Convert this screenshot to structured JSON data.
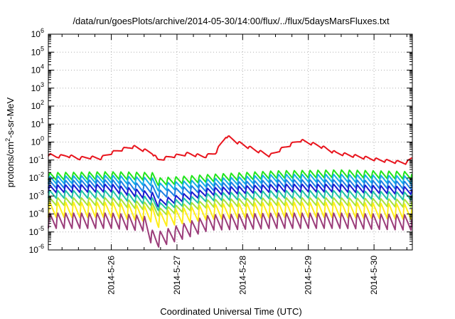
{
  "chart_data": {
    "type": "line",
    "title": "/data/run/goesPlots/archive/2014-05-30/14:00/flux/../flux/5daysMarsFluxes.txt",
    "xlabel": "Coordinated Universal Time (UTC)",
    "ylabel": {
      "prefix": "protons/cm",
      "superscript": "2",
      "suffix": "-s-sr-MeV"
    },
    "y_scale": "log",
    "ylim_exp": [
      -6,
      6
    ],
    "y_ticks": [
      {
        "base": "10",
        "exp": "6"
      },
      {
        "base": "10",
        "exp": "5"
      },
      {
        "base": "10",
        "exp": "4"
      },
      {
        "base": "10",
        "exp": "3"
      },
      {
        "base": "10",
        "exp": "2"
      },
      {
        "base": "10",
        "exp": "1"
      },
      {
        "base": "10",
        "exp": "0"
      },
      {
        "base": "10",
        "exp": "-1"
      },
      {
        "base": "10",
        "exp": "-2"
      },
      {
        "base": "10",
        "exp": "-3"
      },
      {
        "base": "10",
        "exp": "-4"
      },
      {
        "base": "10",
        "exp": "-5"
      },
      {
        "base": "10",
        "exp": "-6"
      }
    ],
    "x_range_days": [
      "2014-05-25 01:00",
      "2014-05-30 14:00"
    ],
    "x_ticks": [
      "2014-5-26",
      "2014-5-27",
      "2014-5-28",
      "2014-5-29",
      "2014-5-30"
    ],
    "grid": true,
    "legend": "none",
    "sawtooth_period_days": 0.12,
    "series": [
      {
        "color": "#e8141d",
        "sawtooth": false,
        "points": [
          [
            "2014-05-25 01:00",
            -0.7
          ],
          [
            "2014-05-25 04:00",
            -0.8
          ],
          [
            "2014-05-25 08:00",
            -0.75
          ],
          [
            "2014-05-25 12:00",
            -0.9
          ],
          [
            "2014-05-25 16:00",
            -0.85
          ],
          [
            "2014-05-25 20:00",
            -0.9
          ],
          [
            "2014-05-26 00:00",
            -0.6
          ],
          [
            "2014-05-26 04:00",
            -0.4
          ],
          [
            "2014-05-26 08:00",
            -0.25
          ],
          [
            "2014-05-26 12:00",
            -0.45
          ],
          [
            "2014-05-26 15:00",
            -0.6
          ],
          [
            "2014-05-26 17:00",
            -1.0
          ],
          [
            "2014-05-26 22:00",
            -0.8
          ],
          [
            "2014-05-27 04:00",
            -0.65
          ],
          [
            "2014-05-27 10:00",
            -0.8
          ],
          [
            "2014-05-27 14:00",
            -0.6
          ],
          [
            "2014-05-27 18:00",
            0.35
          ],
          [
            "2014-05-27 22:00",
            0.0
          ],
          [
            "2014-05-28 04:00",
            -0.4
          ],
          [
            "2014-05-28 10:00",
            -0.75
          ],
          [
            "2014-05-28 14:00",
            -0.4
          ],
          [
            "2014-05-28 18:00",
            -0.1
          ],
          [
            "2014-05-28 21:00",
            0.1
          ],
          [
            "2014-05-29 04:00",
            -0.2
          ],
          [
            "2014-05-29 10:00",
            -0.6
          ],
          [
            "2014-05-29 18:00",
            -0.8
          ],
          [
            "2014-05-30 02:00",
            -1.0
          ],
          [
            "2014-05-30 08:00",
            -1.1
          ],
          [
            "2014-05-30 12:00",
            -1.15
          ],
          [
            "2014-05-30 14:00",
            -0.85
          ]
        ]
      },
      {
        "color": "#21e51c",
        "sawtooth": true,
        "points": [
          [
            "2014-05-25 01:00",
            -1.9
          ],
          [
            "2014-05-26 00:00",
            -1.85
          ],
          [
            "2014-05-26 15:00",
            -1.9
          ],
          [
            "2014-05-26 17:00",
            -2.2
          ],
          [
            "2014-05-27 12:00",
            -2.0
          ],
          [
            "2014-05-28 12:00",
            -1.8
          ],
          [
            "2014-05-29 12:00",
            -1.75
          ],
          [
            "2014-05-30 14:00",
            -1.85
          ]
        ]
      },
      {
        "color": "#13aee6",
        "sawtooth": true,
        "points": [
          [
            "2014-05-25 01:00",
            -2.1
          ],
          [
            "2014-05-26 00:00",
            -2.05
          ],
          [
            "2014-05-26 15:00",
            -2.2
          ],
          [
            "2014-05-26 17:00",
            -2.5
          ],
          [
            "2014-05-27 12:00",
            -2.25
          ],
          [
            "2014-05-28 12:00",
            -2.0
          ],
          [
            "2014-05-29 12:00",
            -2.0
          ],
          [
            "2014-05-30 14:00",
            -2.1
          ]
        ]
      },
      {
        "color": "#1c7fe3",
        "sawtooth": true,
        "points": [
          [
            "2014-05-25 01:00",
            -2.35
          ],
          [
            "2014-05-26 00:00",
            -2.3
          ],
          [
            "2014-05-26 15:00",
            -2.6
          ],
          [
            "2014-05-26 17:00",
            -2.9
          ],
          [
            "2014-05-27 12:00",
            -2.5
          ],
          [
            "2014-05-28 12:00",
            -2.3
          ],
          [
            "2014-05-29 12:00",
            -2.3
          ],
          [
            "2014-05-30 14:00",
            -2.4
          ]
        ]
      },
      {
        "color": "#1a1ad1",
        "sawtooth": true,
        "points": [
          [
            "2014-05-25 01:00",
            -2.6
          ],
          [
            "2014-05-26 00:00",
            -2.55
          ],
          [
            "2014-05-26 15:00",
            -3.0
          ],
          [
            "2014-05-26 17:00",
            -3.4
          ],
          [
            "2014-05-27 12:00",
            -2.75
          ],
          [
            "2014-05-28 12:00",
            -2.55
          ],
          [
            "2014-05-29 12:00",
            -2.55
          ],
          [
            "2014-05-30 14:00",
            -2.7
          ]
        ]
      },
      {
        "color": "#22c4a6",
        "sawtooth": true,
        "points": [
          [
            "2014-05-25 01:00",
            -2.9
          ],
          [
            "2014-05-26 00:00",
            -2.9
          ],
          [
            "2014-05-26 15:00",
            -3.3
          ],
          [
            "2014-05-26 17:00",
            -3.6
          ],
          [
            "2014-05-27 12:00",
            -3.05
          ],
          [
            "2014-05-28 12:00",
            -2.9
          ],
          [
            "2014-05-29 12:00",
            -2.9
          ],
          [
            "2014-05-30 14:00",
            -3.0
          ]
        ]
      },
      {
        "color": "#a8e23c",
        "sawtooth": true,
        "points": [
          [
            "2014-05-25 01:00",
            -3.3
          ],
          [
            "2014-05-26 00:00",
            -3.3
          ],
          [
            "2014-05-26 15:00",
            -3.6
          ],
          [
            "2014-05-26 17:00",
            -3.9
          ],
          [
            "2014-05-27 12:00",
            -3.4
          ],
          [
            "2014-05-28 12:00",
            -3.3
          ],
          [
            "2014-05-29 12:00",
            -3.3
          ],
          [
            "2014-05-30 14:00",
            -3.4
          ]
        ]
      },
      {
        "color": "#ffee1a",
        "sawtooth": true,
        "points": [
          [
            "2014-05-25 01:00",
            -3.75
          ],
          [
            "2014-05-26 00:00",
            -3.75
          ],
          [
            "2014-05-26 15:00",
            -4.0
          ],
          [
            "2014-05-26 17:00",
            -4.3
          ],
          [
            "2014-05-27 12:00",
            -3.85
          ],
          [
            "2014-05-28 12:00",
            -3.75
          ],
          [
            "2014-05-29 12:00",
            -3.75
          ],
          [
            "2014-05-30 14:00",
            -3.85
          ]
        ]
      },
      {
        "color": "#9b3d7a",
        "sawtooth": true,
        "points": [
          [
            "2014-05-25 01:00",
            -4.35
          ],
          [
            "2014-05-26 00:00",
            -4.35
          ],
          [
            "2014-05-26 12:00",
            -4.5
          ],
          [
            "2014-05-26 15:00",
            -5.3
          ],
          [
            "2014-05-26 17:00",
            -5.4
          ],
          [
            "2014-05-27 12:00",
            -4.45
          ],
          [
            "2014-05-28 12:00",
            -4.35
          ],
          [
            "2014-05-29 12:00",
            -4.35
          ],
          [
            "2014-05-30 14:00",
            -4.45
          ]
        ]
      }
    ]
  }
}
